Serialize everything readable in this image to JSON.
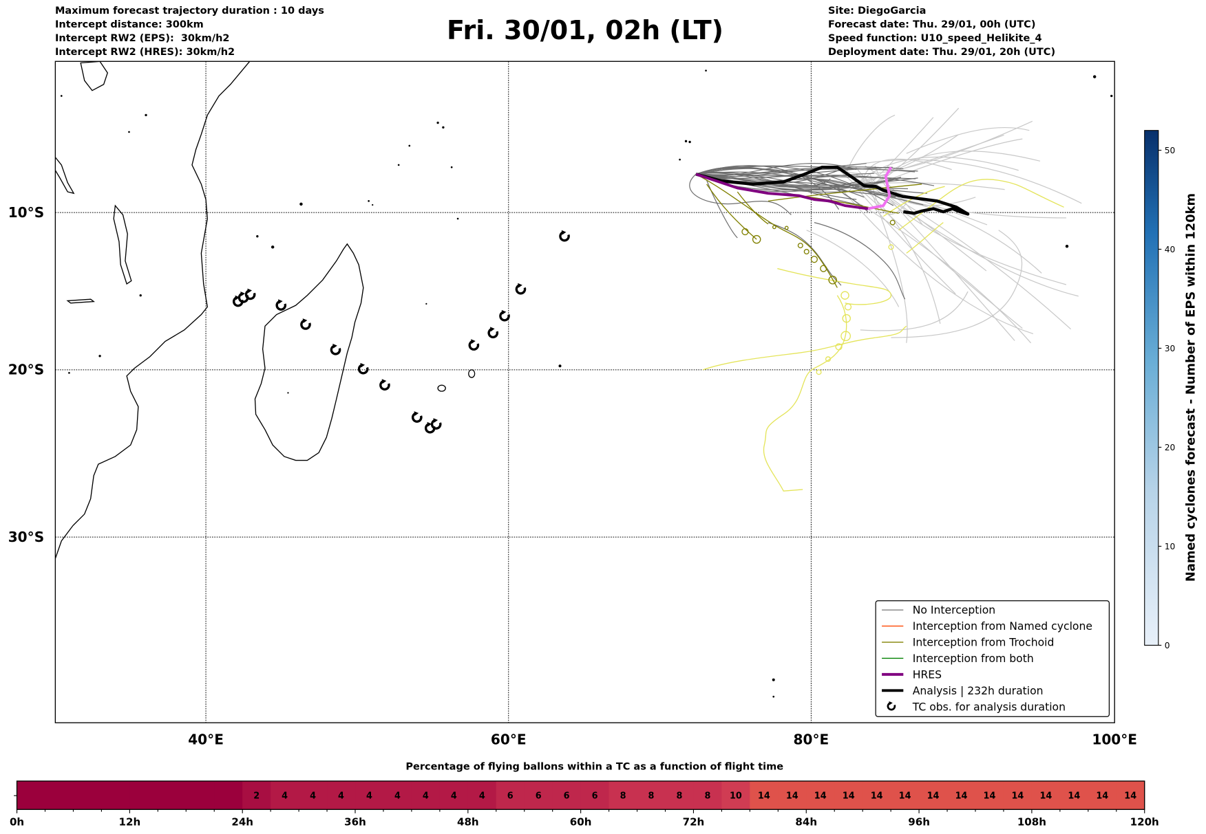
{
  "header": {
    "left": [
      "Maximum forecast trajectory duration : 10 days",
      "Intercept distance: 300km",
      "Intercept RW2 (EPS):  30km/h2",
      "Intercept RW2 (HRES): 30km/h2"
    ],
    "title": "Fri. 30/01, 02h (LT)",
    "right": [
      "Site: DiegoGarcia",
      "Forecast date: Thu. 29/01, 00h (UTC)",
      "Speed function: U10_speed_Helikite_4",
      "Deployment date: Thu. 29/01, 20h (UTC)"
    ]
  },
  "map": {
    "lon_labels": [
      "40°E",
      "60°E",
      "80°E",
      "100°E"
    ],
    "lat_labels": [
      "10°S",
      "20°S",
      "30°S"
    ]
  },
  "legend": {
    "items": [
      {
        "label": "No Interception",
        "color": "#808080",
        "kind": "thin"
      },
      {
        "label": "Interception from Named cyclone",
        "color": "#ff4500",
        "kind": "thin"
      },
      {
        "label": "Interception from Trochoid",
        "color": "#808000",
        "kind": "thin"
      },
      {
        "label": "Interception from both",
        "color": "#008000",
        "kind": "thin"
      },
      {
        "label": "HRES",
        "color": "#800080",
        "kind": "thick"
      },
      {
        "label": "Analysis | 232h duration",
        "color": "#000000",
        "kind": "thick"
      },
      {
        "label": "TC obs. for analysis duration",
        "color": "#000000",
        "kind": "symbol"
      }
    ]
  },
  "colorbar": {
    "label": "Named cyclones forecast - Number of EPS within 120km",
    "min": 0,
    "max": 52,
    "ticks": [
      "0",
      "10",
      "20",
      "30",
      "40",
      "50"
    ],
    "color_low": "#e8f0f9",
    "color_high": "#08306b"
  },
  "timebar": {
    "title": "Percentage of flying ballons within a TC as a function of flight time",
    "values": [
      0,
      0,
      0,
      0,
      0,
      0,
      0,
      0,
      2,
      4,
      4,
      4,
      4,
      4,
      4,
      4,
      4,
      6,
      6,
      6,
      6,
      8,
      8,
      8,
      8,
      10,
      14,
      14,
      14,
      14,
      14,
      14,
      14,
      14,
      14,
      14,
      14,
      14,
      14,
      14
    ],
    "tick_labels": [
      "0h",
      "12h",
      "24h",
      "36h",
      "48h",
      "60h",
      "72h",
      "84h",
      "96h",
      "108h",
      "120h"
    ],
    "colors": {
      "0": "#9b003c",
      "2": "#a80e42",
      "4": "#b31946",
      "6": "#bf274c",
      "8": "#c83150",
      "10": "#d03c53",
      "14": "#df524b"
    }
  }
}
